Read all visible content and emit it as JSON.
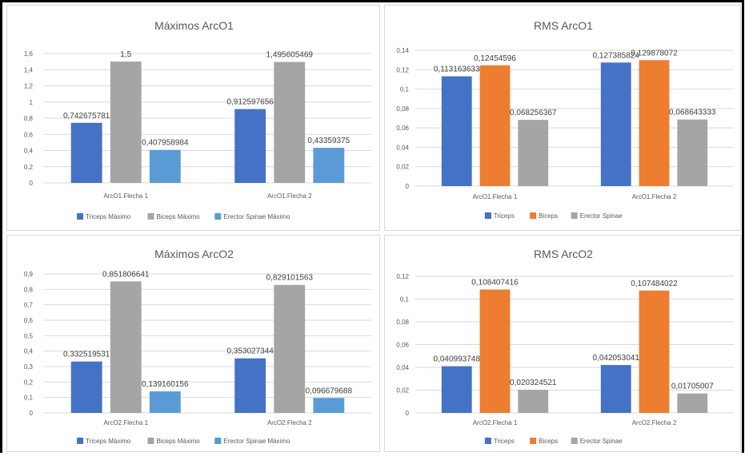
{
  "chart_data": [
    {
      "type": "bar",
      "title": "Máximos ArcO1",
      "categories": [
        "ArcO1.Flecha 1",
        "ArcO1.Flecha 2"
      ],
      "ylim": [
        0,
        1.6
      ],
      "yticks": [
        "0",
        "0,2",
        "0,4",
        "0,6",
        "0,8",
        "1",
        "1,2",
        "1,4",
        "1,6"
      ],
      "grid": true,
      "legend_position": "bottom",
      "series": [
        {
          "name": "Triceps Máximo",
          "color": "#4472c4",
          "values": [
            0.742675781,
            0.912597656
          ],
          "labels": [
            "0,742675781",
            "0,912597656"
          ]
        },
        {
          "name": "Biceps Máximo",
          "color": "#a5a5a5",
          "values": [
            1.5,
            1.495605469
          ],
          "labels": [
            "1,5",
            "1,495605469"
          ]
        },
        {
          "name": "Erector Spinae Máximo",
          "color": "#5b9bd5",
          "values": [
            0.407958984,
            0.43359375
          ],
          "labels": [
            "0,407958984",
            "0,43359375"
          ]
        }
      ]
    },
    {
      "type": "bar",
      "title": "RMS ArcO1",
      "categories": [
        "ArcO1.Flecha 1",
        "ArcO1.Flecha 2"
      ],
      "ylim": [
        0,
        0.14
      ],
      "yticks": [
        "0",
        "0,02",
        "0,04",
        "0,06",
        "0,08",
        "0,1",
        "0,12",
        "0,14"
      ],
      "grid": true,
      "legend_position": "bottom",
      "series": [
        {
          "name": "Triceps",
          "color": "#4472c4",
          "values": [
            0.113163633,
            0.127385824
          ],
          "labels": [
            "0,113163633",
            "0,127385824"
          ]
        },
        {
          "name": "Biceps",
          "color": "#ed7d31",
          "values": [
            0.12454596,
            0.129878072
          ],
          "labels": [
            "0,12454596",
            "0,129878072"
          ]
        },
        {
          "name": "Erector Spinae",
          "color": "#a5a5a5",
          "values": [
            0.068256367,
            0.068643333
          ],
          "labels": [
            "0,068256367",
            "0,068643333"
          ]
        }
      ]
    },
    {
      "type": "bar",
      "title": "Máximos ArcO2",
      "categories": [
        "ArcO2.Flecha 1",
        "ArcO2.Flecha 2"
      ],
      "ylim": [
        0,
        0.9
      ],
      "yticks": [
        "0",
        "0,1",
        "0,2",
        "0,3",
        "0,4",
        "0,5",
        "0,6",
        "0,7",
        "0,8",
        "0,9"
      ],
      "grid": true,
      "legend_position": "bottom",
      "series": [
        {
          "name": "Triceps Máximo",
          "color": "#4472c4",
          "values": [
            0.332519531,
            0.353027344
          ],
          "labels": [
            "0,332519531",
            "0,353027344"
          ]
        },
        {
          "name": "Biceps Máximo",
          "color": "#a5a5a5",
          "values": [
            0.851806641,
            0.829101563
          ],
          "labels": [
            "0,851806641",
            "0,829101563"
          ]
        },
        {
          "name": "Erector Spinae Máximo",
          "color": "#5b9bd5",
          "values": [
            0.139160156,
            0.096679688
          ],
          "labels": [
            "0,139160156",
            "0,096679688"
          ]
        }
      ]
    },
    {
      "type": "bar",
      "title": "RMS ArcO2",
      "categories": [
        "ArcO2.Flecha 1",
        "ArcO2.Flecha 2"
      ],
      "ylim": [
        0,
        0.12
      ],
      "yticks": [
        "0",
        "0,02",
        "0,04",
        "0,06",
        "0,08",
        "0,1",
        "0,12"
      ],
      "grid": true,
      "legend_position": "bottom",
      "series": [
        {
          "name": "Triceps",
          "color": "#4472c4",
          "values": [
            0.040993748,
            0.042053041
          ],
          "labels": [
            "0,040993748",
            "0,042053041"
          ]
        },
        {
          "name": "Biceps",
          "color": "#ed7d31",
          "values": [
            0.108407416,
            0.107484022
          ],
          "labels": [
            "0,108407416",
            "0,107484022"
          ]
        },
        {
          "name": "Erector Spinae",
          "color": "#a5a5a5",
          "values": [
            0.020324521,
            0.01705007
          ],
          "labels": [
            "0,020324521",
            "0,01705007"
          ]
        }
      ]
    }
  ]
}
